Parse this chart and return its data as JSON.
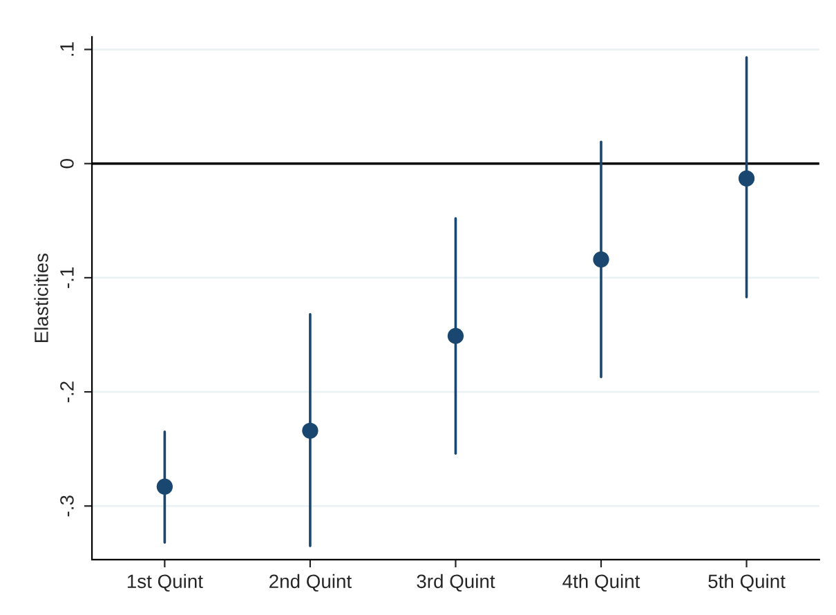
{
  "chart_data": {
    "type": "scatter",
    "ylabel": "Elasticities",
    "categories": [
      "1st Quint",
      "2nd Quint",
      "3rd Quint",
      "4th Quint",
      "5th Quint"
    ],
    "series": [
      {
        "color": "#1a476f",
        "values": [
          -0.283,
          -0.234,
          -0.151,
          -0.084,
          -0.013
        ],
        "errors": [
          [
            -0.332,
            -0.235
          ],
          [
            -0.335,
            -0.132
          ],
          [
            -0.254,
            -0.048
          ],
          [
            -0.187,
            0.019
          ],
          [
            -0.117,
            0.093
          ]
        ]
      }
    ],
    "ylim": [
      -0.347,
      0.111
    ],
    "yticks": [
      {
        "value": 0.1,
        "label": ".1"
      },
      0,
      {
        "value": -0.1,
        "label": "-.1"
      },
      {
        "value": -0.2,
        "label": "-.2"
      },
      {
        "value": -0.3,
        "label": "-.3"
      }
    ],
    "ref_lines": [
      {
        "axis": "y",
        "value": 0,
        "color": "#000000"
      }
    ],
    "grid": "y",
    "marker": "circle"
  }
}
